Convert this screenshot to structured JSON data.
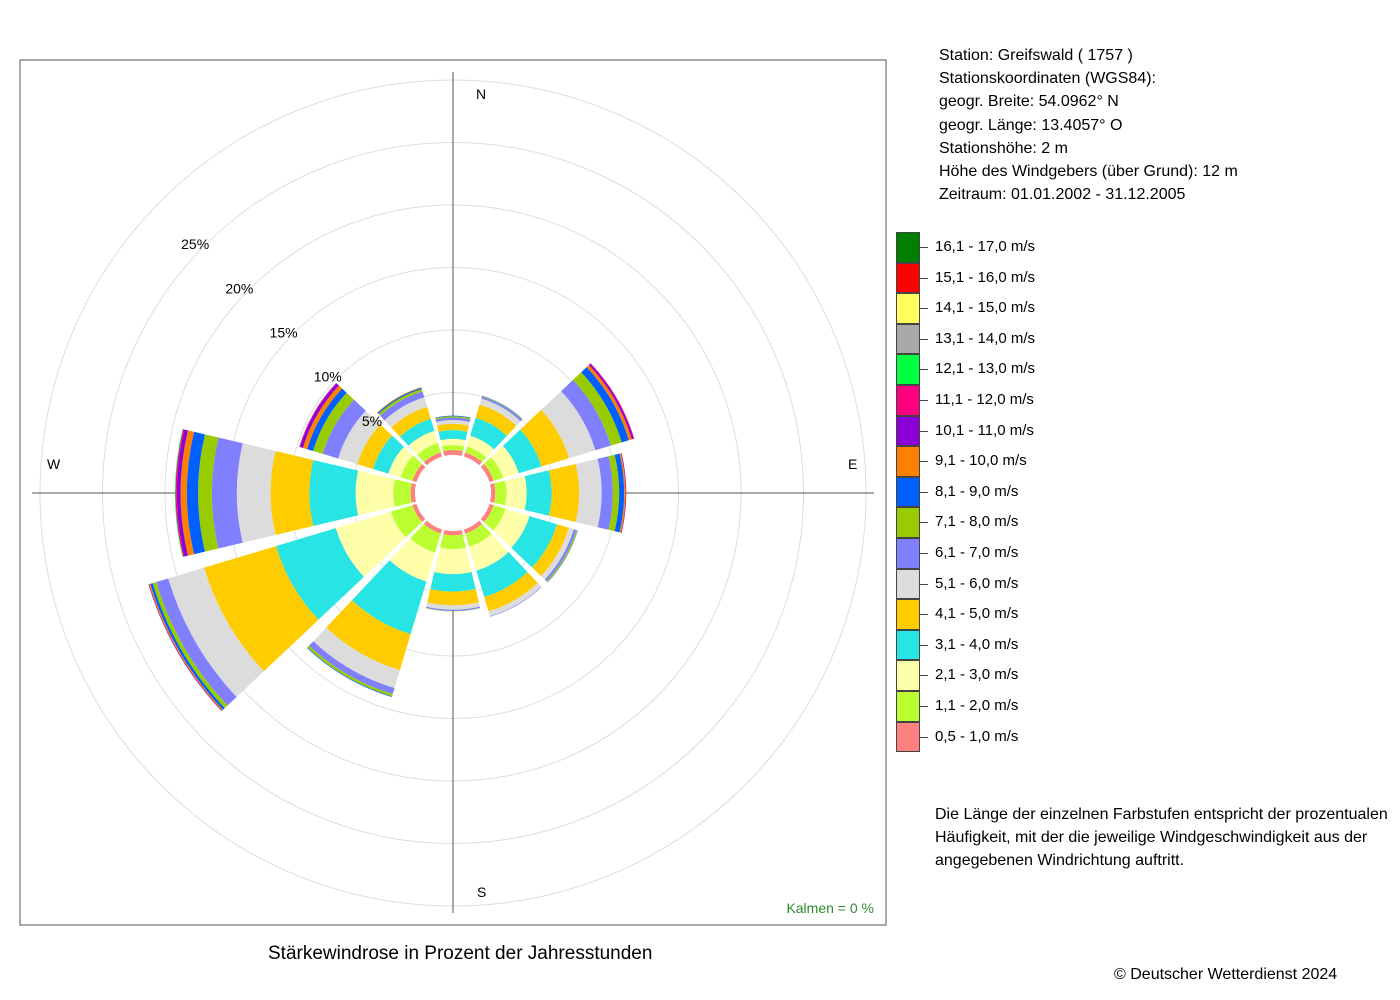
{
  "station_info": {
    "station": "Station:  Greifswald  ( 1757 )",
    "coords_title": "Stationskoordinaten (WGS84):",
    "latitude": "geogr. Breite: 54.0962° N",
    "longitude": "geogr. Länge: 13.4057° O",
    "elevation": "Stationshöhe: 2 m",
    "sensor_height": "Höhe des Windgebers (über Grund): 12 m",
    "period": "Zeitraum: 01.01.2002 - 31.12.2005"
  },
  "legend": [
    {
      "label": "16,1 - 17,0 m/s",
      "color": "#007F00"
    },
    {
      "label": "15,1 - 16,0 m/s",
      "color": "#FF0000"
    },
    {
      "label": "14,1 - 15,0 m/s",
      "color": "#FFFF60"
    },
    {
      "label": "13,1 - 14,0 m/s",
      "color": "#A8A8A8"
    },
    {
      "label": "12,1 - 13,0 m/s",
      "color": "#00FF40"
    },
    {
      "label": "11,1 - 12,0 m/s",
      "color": "#FF0080"
    },
    {
      "label": "10,1 - 11,0 m/s",
      "color": "#8C00D8"
    },
    {
      "label": "9,1 - 10,0 m/s",
      "color": "#FF8000"
    },
    {
      "label": "8,1 - 9,0 m/s",
      "color": "#0060FF"
    },
    {
      "label": "7,1 - 8,0 m/s",
      "color": "#99CC00"
    },
    {
      "label": "6,1 - 7,0 m/s",
      "color": "#8080FF"
    },
    {
      "label": "5,1 - 6,0 m/s",
      "color": "#DCDCDC"
    },
    {
      "label": "4,1 - 5,0 m/s",
      "color": "#FFCC00"
    },
    {
      "label": "3,1 - 4,0 m/s",
      "color": "#28E4E4"
    },
    {
      "label": "2,1 - 3,0 m/s",
      "color": "#FFFFAA"
    },
    {
      "label": "1,1 - 2,0 m/s",
      "color": "#BBFF33"
    },
    {
      "label": "0,5 - 1,0 m/s",
      "color": "#FF8080"
    }
  ],
  "explanation": [
    "Die Länge der einzelnen Farbstufen entspricht der prozentualen",
    "Häufigkeit, mit der die jeweilige Windgeschwindigkeit aus der",
    "angegebenen Windrichtung auftritt."
  ],
  "caption": "Stärkewindrose in Prozent der Jahresstunden",
  "copyright": "© Deutscher Wetterdienst  2024",
  "chart_data": {
    "type": "wind_rose",
    "unit": "%",
    "calms_label": "Kalmen  =  0 %",
    "compass_labels": {
      "N": "N",
      "E": "E",
      "S": "S",
      "W": "W"
    },
    "ring_labels": [
      "5%",
      "10%",
      "15%",
      "20%",
      "25%"
    ],
    "ring_values": [
      5,
      10,
      15,
      20,
      25,
      30
    ],
    "directions_deg": [
      0,
      30,
      60,
      90,
      120,
      150,
      180,
      210,
      240,
      270,
      300,
      330
    ],
    "speed_classes": [
      "0,5 - 1,0 m/s",
      "1,1 - 2,0 m/s",
      "2,1 - 3,0 m/s",
      "3,1 - 4,0 m/s",
      "4,1 - 5,0 m/s",
      "5,1 - 6,0 m/s",
      "6,1 - 7,0 m/s",
      "7,1 - 8,0 m/s",
      "8,1 - 9,0 m/s",
      "9,1 - 10,0 m/s",
      "10,1 - 11,0 m/s",
      "11,1 - 12,0 m/s",
      "12,1 - 13,0 m/s",
      "13,1 - 14,0 m/s",
      "14,1 - 15,0 m/s",
      "15,1 - 16,0 m/s",
      "16,1 - 17,0 m/s"
    ],
    "frequencies": [
      [
        0.4,
        0.4,
        0.5,
        0.7,
        0.5,
        0.3,
        0.2,
        0.1,
        0.05,
        0,
        0,
        0,
        0,
        0,
        0,
        0,
        0
      ],
      [
        0.35,
        0.5,
        0.9,
        1.5,
        1.1,
        0.5,
        0.15,
        0.05,
        0.03,
        0,
        0,
        0,
        0,
        0,
        0,
        0,
        0
      ],
      [
        0.35,
        0.8,
        1.3,
        1.9,
        2.3,
        2.2,
        1.3,
        0.9,
        0.6,
        0.25,
        0.15,
        0.05,
        0,
        0,
        0,
        0,
        0
      ],
      [
        0.35,
        0.9,
        1.6,
        2.0,
        2.2,
        1.8,
        0.9,
        0.5,
        0.4,
        0.12,
        0.05,
        0,
        0,
        0,
        0,
        0,
        0
      ],
      [
        0.35,
        1.0,
        2.0,
        2.3,
        1.0,
        0.4,
        0.2,
        0.1,
        0.03,
        0,
        0,
        0,
        0,
        0,
        0,
        0,
        0
      ],
      [
        0.35,
        1.1,
        2.0,
        2.2,
        1.2,
        0.4,
        0.05,
        0,
        0,
        0,
        0,
        0,
        0,
        0,
        0,
        0,
        0
      ],
      [
        0.35,
        1.1,
        2.0,
        1.4,
        1.1,
        0.35,
        0.1,
        0.03,
        0,
        0,
        0,
        0,
        0,
        0,
        0,
        0,
        0
      ],
      [
        0.35,
        1.6,
        2.4,
        4.4,
        3.0,
        1.5,
        0.5,
        0.2,
        0.05,
        0,
        0,
        0,
        0,
        0,
        0,
        0,
        0
      ],
      [
        0.35,
        1.8,
        4.6,
        5.0,
        6.0,
        3.0,
        1.0,
        0.3,
        0.2,
        0.1,
        0.05,
        0,
        0,
        0,
        0,
        0,
        0
      ],
      [
        0.35,
        1.4,
        3.0,
        3.7,
        3.1,
        2.7,
        2.0,
        1.1,
        0.9,
        0.5,
        0.3,
        0.1,
        0.05,
        0,
        0,
        0,
        0
      ],
      [
        0.35,
        1.0,
        1.0,
        1.3,
        1.3,
        1.6,
        1.3,
        0.8,
        0.5,
        0.35,
        0.25,
        0.05,
        0,
        0,
        0,
        0,
        0
      ],
      [
        0.35,
        0.8,
        1.0,
        1.0,
        1.0,
        0.8,
        0.5,
        0.2,
        0.1,
        0.05,
        0,
        0,
        0,
        0,
        0,
        0,
        0
      ]
    ]
  }
}
